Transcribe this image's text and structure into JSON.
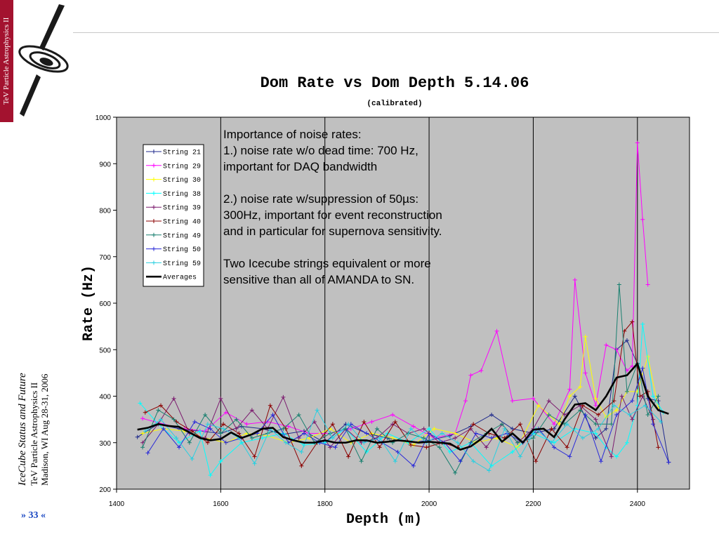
{
  "sidebar": {
    "label": "TeV Particle Astrophysics II",
    "color": "#a3122f"
  },
  "footer": {
    "title": "IceCube Status and Future",
    "conference": "TeV Particle Astrophysics II",
    "location_date": "Madison, WI Aug 28-31, 2006",
    "page": "» 33 «"
  },
  "annotation": {
    "paragraphs": [
      "Importance of noise rates:\n1.) noise rate w/o dead time: 700 Hz,\nimportant for DAQ bandwidth",
      "2.) noise rate w/suppression of 50µs:\n300Hz, important for event reconstruction\nand in particular for supernova sensitivity.",
      "Two Icecube strings equivalent or more\nsensitive than all of AMANDA to SN."
    ]
  },
  "chart_data": {
    "type": "line",
    "title": "Dom Rate vs Dom Depth 5.14.06",
    "subtitle": "(calibrated)",
    "xlabel": "Depth (m)",
    "ylabel": "Rate (Hz)",
    "xlim": [
      1400,
      2500
    ],
    "ylim": [
      200,
      1000
    ],
    "xticks": [
      1400,
      1600,
      1800,
      2000,
      2200,
      2400
    ],
    "yticks": [
      200,
      300,
      400,
      500,
      600,
      700,
      800,
      900,
      1000
    ],
    "plot_background": "#c0c0c0",
    "vertical_gridlines": [
      1600,
      1800,
      2000,
      2200,
      2400
    ],
    "legend_position": "top-left",
    "series": [
      {
        "name": "String 21",
        "color": "#1f2a8c",
        "x": [
          1440,
          1480,
          1520,
          1560,
          1600,
          1640,
          1680,
          1720,
          1760,
          1800,
          1840,
          1880,
          1920,
          1960,
          2000,
          2040,
          2080,
          2120,
          2160,
          2200,
          2240,
          2280,
          2320,
          2340,
          2360,
          2380,
          2400,
          2420,
          2440,
          2460
        ],
        "y": [
          312,
          340,
          330,
          325,
          320,
          335,
          330,
          318,
          325,
          300,
          340,
          320,
          310,
          300,
          305,
          315,
          335,
          360,
          330,
          320,
          330,
          400,
          310,
          330,
          500,
          520,
          470,
          395,
          390,
          258
        ]
      },
      {
        "name": "String 29",
        "color": "#ff00ff",
        "x": [
          1450,
          1490,
          1530,
          1570,
          1610,
          1650,
          1690,
          1730,
          1770,
          1810,
          1850,
          1890,
          1930,
          1970,
          2010,
          2050,
          2070,
          2080,
          2100,
          2130,
          2160,
          2200,
          2240,
          2270,
          2280,
          2300,
          2320,
          2340,
          2360,
          2380,
          2390,
          2400,
          2410,
          2420
        ],
        "y": [
          352,
          340,
          330,
          325,
          365,
          340,
          345,
          335,
          320,
          320,
          330,
          345,
          360,
          335,
          310,
          320,
          390,
          445,
          455,
          540,
          390,
          395,
          340,
          415,
          650,
          450,
          380,
          510,
          500,
          455,
          465,
          945,
          780,
          640
        ]
      },
      {
        "name": "String 30",
        "color": "#ffff00",
        "x": [
          1450,
          1490,
          1530,
          1570,
          1610,
          1650,
          1690,
          1730,
          1770,
          1810,
          1850,
          1890,
          1930,
          1970,
          2010,
          2050,
          2090,
          2130,
          2170,
          2210,
          2250,
          2270,
          2290,
          2300,
          2320,
          2340,
          2360,
          2380,
          2400,
          2420,
          2440
        ],
        "y": [
          320,
          330,
          325,
          310,
          300,
          320,
          315,
          300,
          310,
          330,
          300,
          320,
          310,
          295,
          330,
          320,
          300,
          310,
          290,
          380,
          340,
          400,
          420,
          528,
          395,
          355,
          370,
          410,
          410,
          485,
          375
        ]
      },
      {
        "name": "String 38",
        "color": "#00ffff",
        "x": [
          1445,
          1480,
          1520,
          1560,
          1580,
          1600,
          1640,
          1680,
          1720,
          1760,
          1800,
          1840,
          1880,
          1920,
          1960,
          2000,
          2040,
          2080,
          2120,
          2160,
          2200,
          2240,
          2280,
          2320,
          2340,
          2360,
          2380,
          2400,
          2410,
          2430,
          2450
        ],
        "y": [
          385,
          340,
          300,
          325,
          230,
          260,
          300,
          310,
          320,
          295,
          300,
          330,
          280,
          320,
          300,
          330,
          280,
          300,
          250,
          280,
          320,
          300,
          330,
          320,
          290,
          270,
          300,
          380,
          555,
          400,
          365
        ]
      },
      {
        "name": "String 39",
        "color": "#7b1a6e",
        "x": [
          1450,
          1480,
          1510,
          1540,
          1570,
          1600,
          1630,
          1660,
          1690,
          1720,
          1750,
          1780,
          1810,
          1840,
          1870,
          1900,
          1930,
          1960,
          1990,
          2020,
          2050,
          2080,
          2110,
          2140,
          2170,
          2200,
          2230,
          2260,
          2290,
          2320,
          2350,
          2370,
          2390,
          2410,
          2430
        ],
        "y": [
          300,
          340,
          395,
          320,
          310,
          395,
          330,
          370,
          330,
          398,
          310,
          345,
          290,
          330,
          300,
          310,
          340,
          320,
          330,
          300,
          310,
          330,
          290,
          340,
          300,
          330,
          390,
          360,
          380,
          350,
          270,
          400,
          350,
          400,
          350
        ]
      },
      {
        "name": "String 40",
        "color": "#8b0000",
        "x": [
          1455,
          1485,
          1515,
          1545,
          1575,
          1605,
          1635,
          1665,
          1695,
          1725,
          1755,
          1785,
          1815,
          1845,
          1875,
          1905,
          1935,
          1965,
          1995,
          2025,
          2055,
          2085,
          2115,
          2145,
          2175,
          2205,
          2235,
          2265,
          2295,
          2325,
          2355,
          2375,
          2390,
          2405,
          2420,
          2440
        ],
        "y": [
          365,
          380,
          345,
          325,
          300,
          340,
          320,
          270,
          380,
          330,
          250,
          300,
          340,
          270,
          345,
          290,
          345,
          295,
          290,
          300,
          290,
          340,
          320,
          310,
          340,
          260,
          330,
          290,
          380,
          360,
          390,
          540,
          560,
          400,
          410,
          290
        ]
      },
      {
        "name": "String 49",
        "color": "#1a8070",
        "x": [
          1450,
          1480,
          1510,
          1540,
          1570,
          1600,
          1630,
          1660,
          1690,
          1720,
          1750,
          1780,
          1810,
          1840,
          1870,
          1900,
          1930,
          1960,
          1990,
          2020,
          2050,
          2080,
          2110,
          2140,
          2170,
          2200,
          2230,
          2260,
          2290,
          2320,
          2350,
          2365,
          2380,
          2400,
          2420,
          2440
        ],
        "y": [
          290,
          370,
          350,
          300,
          360,
          320,
          350,
          310,
          320,
          330,
          360,
          300,
          320,
          330,
          260,
          330,
          300,
          320,
          310,
          290,
          235,
          300,
          320,
          340,
          300,
          310,
          360,
          340,
          370,
          340,
          340,
          640,
          410,
          470,
          360,
          400
        ]
      },
      {
        "name": "String 50",
        "color": "#2a2ad8",
        "x": [
          1460,
          1490,
          1520,
          1550,
          1580,
          1610,
          1640,
          1670,
          1700,
          1730,
          1760,
          1790,
          1820,
          1850,
          1880,
          1910,
          1940,
          1970,
          2000,
          2030,
          2060,
          2090,
          2120,
          2150,
          2180,
          2210,
          2240,
          2270,
          2300,
          2330,
          2360,
          2390,
          2410,
          2430,
          2460
        ],
        "y": [
          278,
          330,
          290,
          345,
          330,
          300,
          310,
          320,
          360,
          300,
          320,
          300,
          290,
          340,
          320,
          300,
          280,
          250,
          320,
          300,
          260,
          320,
          310,
          320,
          300,
          330,
          290,
          270,
          360,
          260,
          360,
          390,
          460,
          340,
          258
        ]
      },
      {
        "name": "String 59",
        "color": "#2acfe0",
        "x": [
          1455,
          1485,
          1515,
          1545,
          1575,
          1605,
          1635,
          1665,
          1695,
          1725,
          1755,
          1785,
          1815,
          1845,
          1875,
          1905,
          1935,
          1965,
          1995,
          2025,
          2055,
          2085,
          2115,
          2145,
          2175,
          2205,
          2235,
          2265,
          2295,
          2325,
          2355,
          2385,
          2415,
          2445
        ],
        "y": [
          325,
          350,
          310,
          265,
          340,
          330,
          310,
          255,
          330,
          300,
          280,
          370,
          310,
          340,
          300,
          310,
          260,
          330,
          300,
          320,
          300,
          260,
          240,
          330,
          270,
          330,
          300,
          340,
          310,
          330,
          380,
          360,
          380,
          345
        ]
      },
      {
        "name": "Averages",
        "color": "#000000",
        "x": [
          1440,
          1460,
          1480,
          1500,
          1520,
          1540,
          1560,
          1580,
          1600,
          1620,
          1640,
          1660,
          1680,
          1700,
          1720,
          1740,
          1760,
          1780,
          1800,
          1820,
          1840,
          1860,
          1880,
          1900,
          1920,
          1940,
          1960,
          1980,
          2000,
          2020,
          2040,
          2060,
          2080,
          2100,
          2120,
          2140,
          2160,
          2180,
          2200,
          2220,
          2240,
          2260,
          2280,
          2300,
          2320,
          2340,
          2360,
          2380,
          2400,
          2420,
          2440,
          2460
        ],
        "y": [
          328,
          332,
          340,
          336,
          334,
          322,
          310,
          305,
          308,
          322,
          310,
          318,
          330,
          332,
          312,
          305,
          300,
          300,
          305,
          300,
          300,
          305,
          305,
          300,
          302,
          305,
          303,
          300,
          302,
          300,
          298,
          285,
          292,
          308,
          330,
          302,
          320,
          300,
          328,
          330,
          312,
          350,
          382,
          385,
          370,
          400,
          440,
          445,
          470,
          400,
          370,
          362
        ]
      }
    ]
  }
}
